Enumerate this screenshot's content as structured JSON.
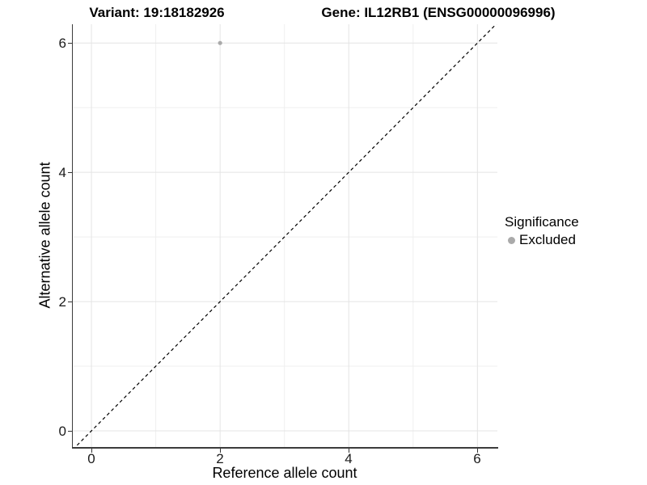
{
  "titles": {
    "variant": "Variant: 19:18182926",
    "gene": "Gene: IL12RB1 (ENSG00000096996)"
  },
  "axes": {
    "x_label": "Reference allele count",
    "y_label": "Alternative allele count",
    "x_tick_labels": [
      "0",
      "2",
      "4",
      "6"
    ],
    "y_tick_labels_top_to_bottom": [
      "6",
      "4",
      "2",
      "0"
    ]
  },
  "legend": {
    "title": "Significance",
    "items": [
      {
        "label": "Excluded",
        "color": "#aaaaaa"
      }
    ]
  },
  "colors": {
    "background": "#ffffff",
    "grid_major": "#e4e4e4",
    "grid_minor": "#efefef",
    "axis_line": "#3c3c3c",
    "reference_line": "#000000",
    "point": "#aaaaaa"
  },
  "chart_data": {
    "type": "scatter",
    "title": "Variant: 19:18182926    Gene: IL12RB1 (ENSG00000096996)",
    "xlabel": "Reference allele count",
    "ylabel": "Alternative allele count",
    "xlim": [
      -0.29,
      6.31
    ],
    "ylim": [
      -0.25,
      6.29
    ],
    "major_breaks": [
      0,
      2,
      4,
      6
    ],
    "minor_breaks": [
      1,
      3,
      5
    ],
    "grid": "on",
    "legend_position": "right",
    "series": [
      {
        "name": "Excluded",
        "color": "#aaaaaa",
        "point_radius": 2.6,
        "points": [
          {
            "x": 2,
            "y": 6
          }
        ]
      }
    ],
    "reference_line": {
      "type": "identity",
      "slope": 1,
      "intercept": 0,
      "style": "dashed",
      "color": "#000000"
    }
  }
}
